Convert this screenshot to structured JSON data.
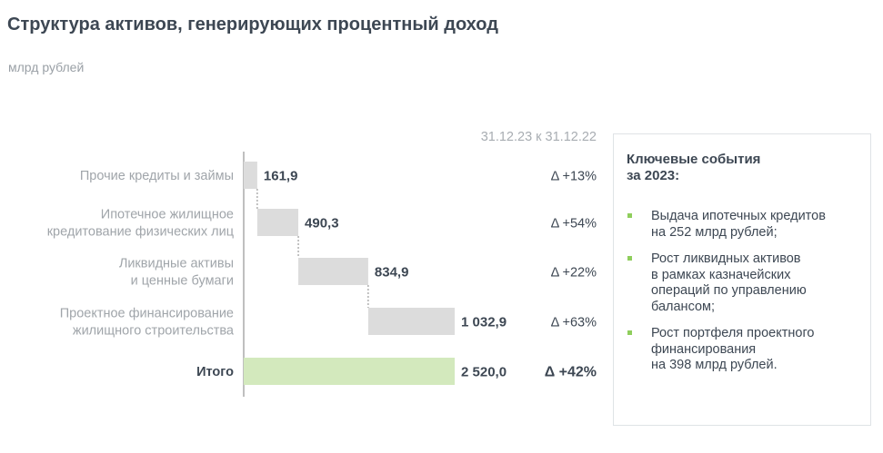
{
  "title": "Структура активов, генерирующих процентный доход",
  "unit": "млрд рублей",
  "compare_header": "31.12.23 к 31.12.22",
  "chart_data": {
    "type": "bar",
    "subtype": "waterfall",
    "orientation": "horizontal",
    "categories": [
      [
        "Прочие кредиты и займы"
      ],
      [
        "Ипотечное жилищное",
        "кредитование физических лиц"
      ],
      [
        "Ликвидные активы",
        "и ценные бумаги"
      ],
      [
        "Проектное финансирование",
        "жилищного строительства"
      ],
      [
        "Итого"
      ]
    ],
    "values": [
      161.9,
      490.3,
      834.9,
      1032.9,
      2520.0
    ],
    "value_labels": [
      "161,9",
      "490,3",
      "834,9",
      "1 032,9",
      "2 520,0"
    ],
    "deltas": [
      "Δ +13%",
      "Δ +54%",
      "Δ +22%",
      "Δ +63%",
      "Δ +42%"
    ],
    "is_total": [
      false,
      false,
      false,
      false,
      true
    ],
    "colors": {
      "step": "#dcdcdc",
      "total": "#d3e9bd",
      "connector": "#888888",
      "axis": "#aaaaaa"
    },
    "grid": false,
    "legend": "none"
  },
  "panel": {
    "title": "Ключевые события\nза 2023:",
    "bullet_color": "#8fce5c",
    "events": [
      "Выдача ипотечных кредитов\nна 252 млрд рублей;",
      "Рост ликвидных активов\nв рамках казначейских\nопераций по управлению\nбалансом;",
      "Рост портфеля проектного\nфинансирования\nна 398 млрд рублей."
    ]
  }
}
